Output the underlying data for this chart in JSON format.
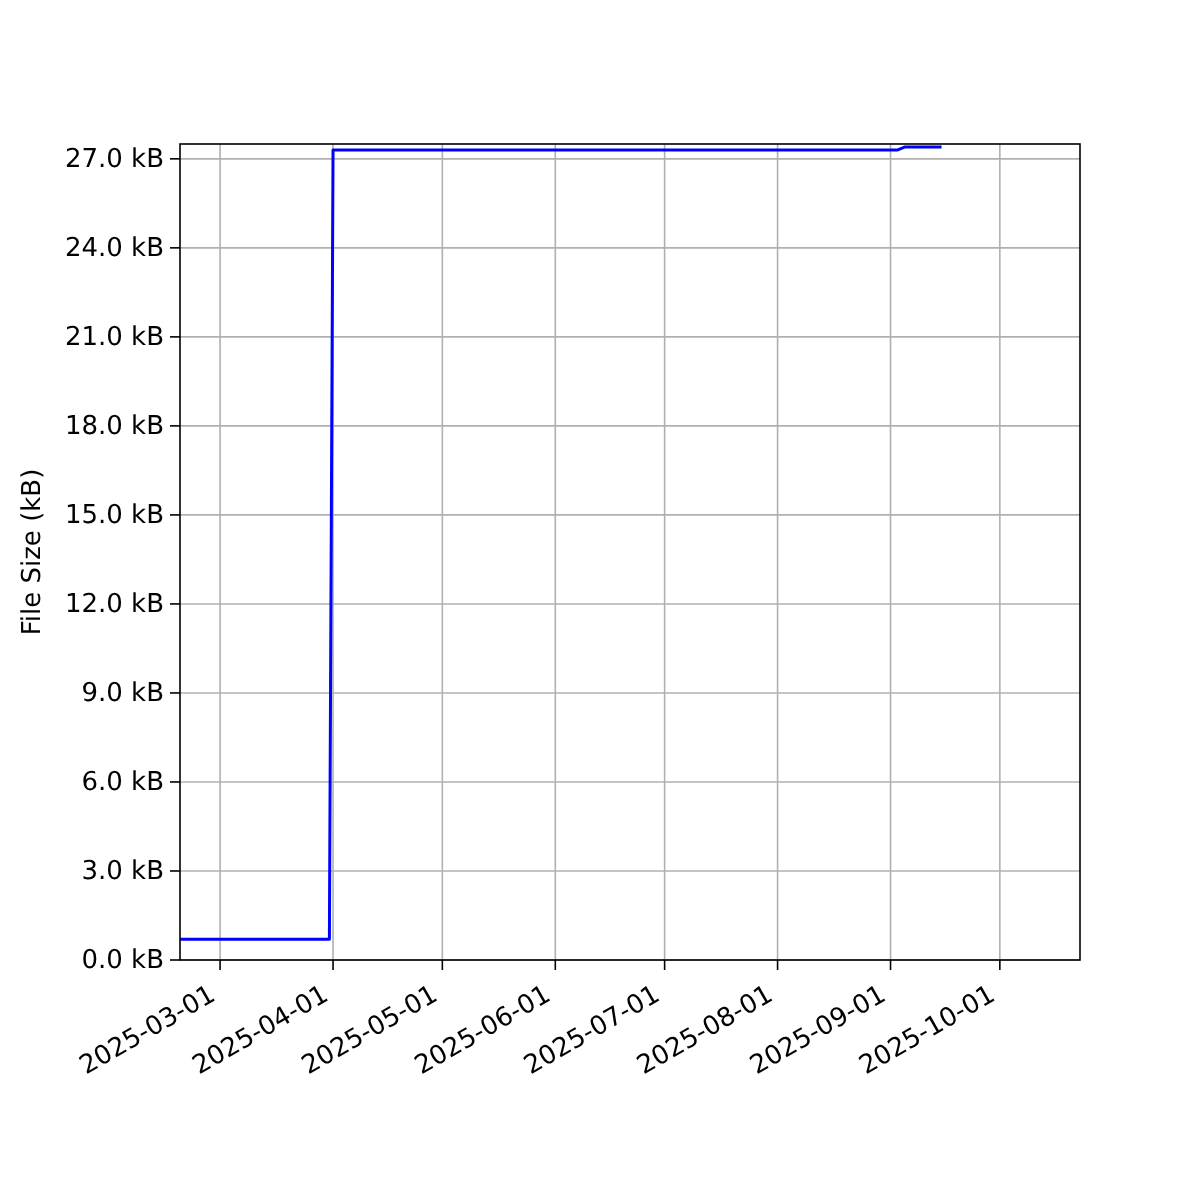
{
  "chart_data": {
    "type": "line",
    "ylabel": "File Size (kB)",
    "x": [
      "2025-02-18",
      "2025-03-31",
      "2025-04-01",
      "2025-09-03",
      "2025-09-05",
      "2025-09-15"
    ],
    "series": [
      {
        "color": "#0000ff",
        "values": [
          0.7,
          0.7,
          27.3,
          27.3,
          27.4,
          27.4
        ]
      }
    ],
    "xlim": [
      "2025-02-18",
      "2025-10-23"
    ],
    "xticks": [
      "2025-03-01",
      "2025-04-01",
      "2025-05-01",
      "2025-06-01",
      "2025-07-01",
      "2025-08-01",
      "2025-09-01",
      "2025-10-01"
    ],
    "ylim": [
      0,
      27.5
    ],
    "yticks": [
      {
        "value": 0,
        "label": "0.0 kB"
      },
      {
        "value": 3,
        "label": "3.0 kB"
      },
      {
        "value": 6,
        "label": "6.0 kB"
      },
      {
        "value": 9,
        "label": "9.0 kB"
      },
      {
        "value": 12,
        "label": "12.0 kB"
      },
      {
        "value": 15,
        "label": "15.0 kB"
      },
      {
        "value": 18,
        "label": "18.0 kB"
      },
      {
        "value": 21,
        "label": "21.0 kB"
      },
      {
        "value": 24,
        "label": "24.0 kB"
      },
      {
        "value": 27,
        "label": "27.0 kB"
      }
    ],
    "grid": true
  }
}
